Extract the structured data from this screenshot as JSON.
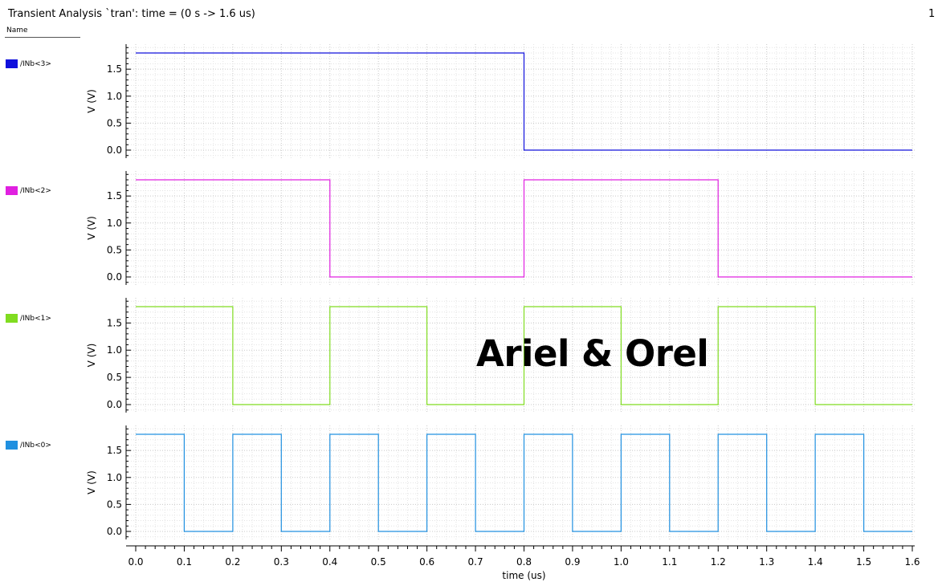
{
  "header": {
    "title": "Transient Analysis `tran': time = (0 s -> 1.6 us)",
    "page": "1",
    "name_column": "Name"
  },
  "watermark": "Ariel & Orel",
  "chart_data": {
    "type": "line",
    "xlabel": "time (us)",
    "xlim": [
      0,
      1.6
    ],
    "x_ticks": [
      "0.0",
      "0.1",
      "0.2",
      "0.3",
      "0.4",
      "0.5",
      "0.6",
      "0.7",
      "0.8",
      "0.9",
      "1.0",
      "1.1",
      "1.2",
      "1.3",
      "1.4",
      "1.5",
      "1.6"
    ],
    "ylabel": "V (V)",
    "ylim": [
      -0.2,
      1.95
    ],
    "y_ticks": [
      "0.0",
      "0.5",
      "1.0",
      "1.5"
    ],
    "grid": true,
    "series": [
      {
        "name": "/INb<3>",
        "color": "#1010dc",
        "high": 1.8,
        "low": 0.0,
        "x": [
          0,
          0.8,
          0.8,
          1.6
        ],
        "y": [
          1.8,
          1.8,
          0.0,
          0.0
        ]
      },
      {
        "name": "/INb<2>",
        "color": "#e020e0",
        "high": 1.8,
        "low": 0.0,
        "x": [
          0,
          0.4,
          0.4,
          0.8,
          0.8,
          1.2,
          1.2,
          1.6
        ],
        "y": [
          1.8,
          1.8,
          0.0,
          0.0,
          1.8,
          1.8,
          0.0,
          0.0
        ]
      },
      {
        "name": "/INb<1>",
        "color": "#80dc20",
        "high": 1.8,
        "low": 0.0,
        "x": [
          0,
          0.2,
          0.2,
          0.4,
          0.4,
          0.6,
          0.6,
          0.8,
          0.8,
          1.0,
          1.0,
          1.2,
          1.2,
          1.4,
          1.4,
          1.6
        ],
        "y": [
          1.8,
          1.8,
          0.0,
          0.0,
          1.8,
          1.8,
          0.0,
          0.0,
          1.8,
          1.8,
          0.0,
          0.0,
          1.8,
          1.8,
          0.0,
          0.0
        ]
      },
      {
        "name": "/INb<0>",
        "color": "#2090e0",
        "high": 1.8,
        "low": 0.0,
        "x": [
          0,
          0.1,
          0.1,
          0.2,
          0.2,
          0.3,
          0.3,
          0.4,
          0.4,
          0.5,
          0.5,
          0.6,
          0.6,
          0.7,
          0.7,
          0.8,
          0.8,
          0.9,
          0.9,
          1.0,
          1.0,
          1.1,
          1.1,
          1.2,
          1.2,
          1.3,
          1.3,
          1.4,
          1.4,
          1.5,
          1.5,
          1.6
        ],
        "y": [
          1.8,
          1.8,
          0.0,
          0.0,
          1.8,
          1.8,
          0.0,
          0.0,
          1.8,
          1.8,
          0.0,
          0.0,
          1.8,
          1.8,
          0.0,
          0.0,
          1.8,
          1.8,
          0.0,
          0.0,
          1.8,
          1.8,
          0.0,
          0.0,
          1.8,
          1.8,
          0.0,
          0.0,
          1.8,
          1.8,
          0.0,
          0.0
        ]
      }
    ]
  }
}
